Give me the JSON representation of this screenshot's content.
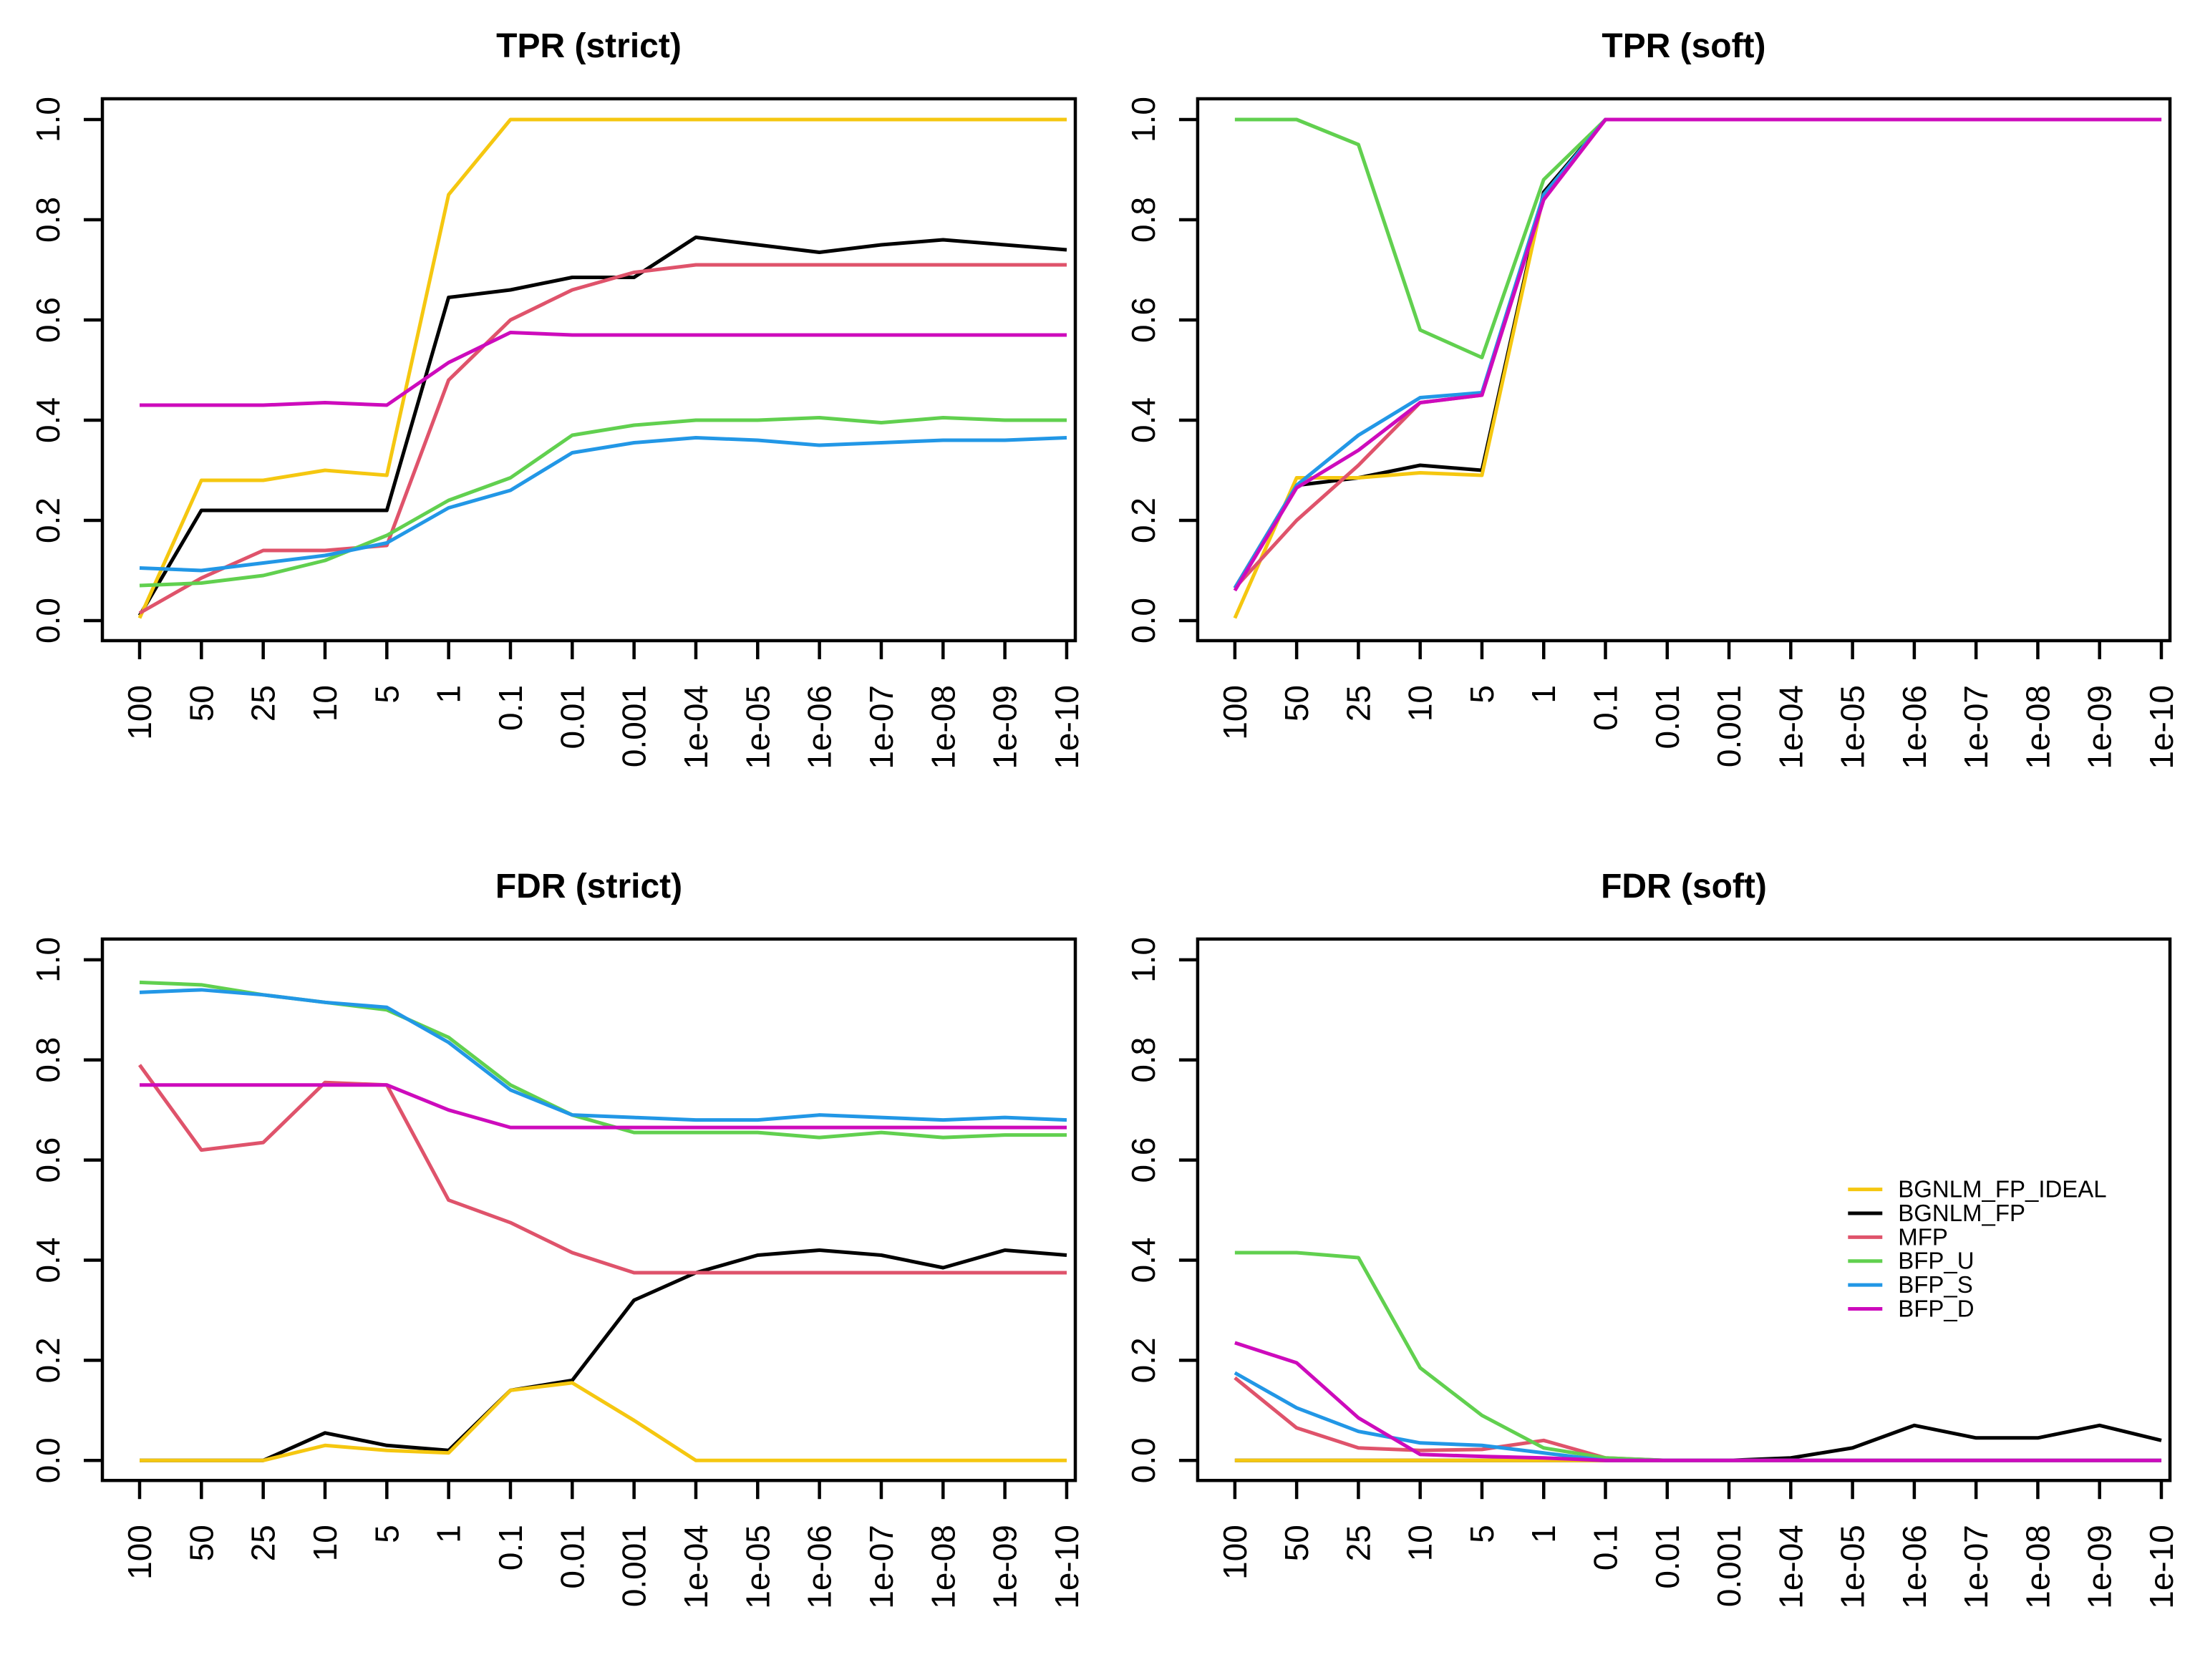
{
  "figure": {
    "background": "#ffffff",
    "axis_color": "#000000",
    "text_color": "#000000"
  },
  "palette": {
    "BGNLM_FP_IDEAL": "#F5C710",
    "BGNLM_FP": "#000000",
    "MFP": "#DF536B",
    "BFP_U": "#61D04F",
    "BFP_S": "#2297E6",
    "BFP_D": "#CD0BBC"
  },
  "legend": {
    "entries": [
      "BGNLM_FP_IDEAL",
      "BGNLM_FP",
      "MFP",
      "BFP_U",
      "BFP_S",
      "BFP_D"
    ]
  },
  "draw_order": [
    "BGNLM_FP",
    "BGNLM_FP_IDEAL",
    "MFP",
    "BFP_U",
    "BFP_S",
    "BFP_D"
  ],
  "chart_data": [
    {
      "type": "line",
      "title": "TPR (strict)",
      "position": "top-left",
      "grid": false,
      "legend": false,
      "xlabel": "",
      "ylabel": "",
      "ylim": [
        0.0,
        1.0
      ],
      "ytick_labels": [
        "0.0",
        "0.2",
        "0.4",
        "0.6",
        "0.8",
        "1.0"
      ],
      "categories": [
        "100",
        "50",
        "25",
        "10",
        "5",
        "1",
        "0.1",
        "0.01",
        "0.001",
        "1e-04",
        "1e-05",
        "1e-06",
        "1e-07",
        "1e-08",
        "1e-09",
        "1e-10"
      ],
      "series": [
        {
          "name": "BGNLM_FP_IDEAL",
          "values": [
            0.005,
            0.28,
            0.28,
            0.3,
            0.29,
            0.85,
            1.0,
            1.0,
            1.0,
            1.0,
            1.0,
            1.0,
            1.0,
            1.0,
            1.0,
            1.0
          ]
        },
        {
          "name": "BGNLM_FP",
          "values": [
            0.01,
            0.22,
            0.22,
            0.22,
            0.22,
            0.645,
            0.66,
            0.685,
            0.685,
            0.765,
            0.75,
            0.735,
            0.75,
            0.76,
            0.75,
            0.74
          ]
        },
        {
          "name": "MFP",
          "values": [
            0.015,
            0.085,
            0.14,
            0.14,
            0.15,
            0.48,
            0.6,
            0.66,
            0.695,
            0.71,
            0.71,
            0.71,
            0.71,
            0.71,
            0.71,
            0.71
          ]
        },
        {
          "name": "BFP_U",
          "values": [
            0.07,
            0.075,
            0.09,
            0.12,
            0.17,
            0.24,
            0.285,
            0.37,
            0.39,
            0.4,
            0.4,
            0.405,
            0.395,
            0.405,
            0.4,
            0.4
          ]
        },
        {
          "name": "BFP_S",
          "values": [
            0.105,
            0.1,
            0.115,
            0.13,
            0.155,
            0.225,
            0.26,
            0.335,
            0.355,
            0.365,
            0.36,
            0.35,
            0.355,
            0.36,
            0.36,
            0.365
          ]
        },
        {
          "name": "BFP_D",
          "values": [
            0.43,
            0.43,
            0.43,
            0.435,
            0.43,
            0.515,
            0.575,
            0.57,
            0.57,
            0.57,
            0.57,
            0.57,
            0.57,
            0.57,
            0.57,
            0.57
          ]
        }
      ]
    },
    {
      "type": "line",
      "title": "TPR (soft)",
      "position": "top-right",
      "grid": false,
      "legend": false,
      "xlabel": "",
      "ylabel": "",
      "ylim": [
        0.0,
        1.0
      ],
      "ytick_labels": [
        "0.0",
        "0.2",
        "0.4",
        "0.6",
        "0.8",
        "1.0"
      ],
      "categories": [
        "100",
        "50",
        "25",
        "10",
        "5",
        "1",
        "0.1",
        "0.01",
        "0.001",
        "1e-04",
        "1e-05",
        "1e-06",
        "1e-07",
        "1e-08",
        "1e-09",
        "1e-10"
      ],
      "series": [
        {
          "name": "BGNLM_FP_IDEAL",
          "values": [
            0.005,
            0.285,
            0.285,
            0.295,
            0.29,
            0.85,
            1.0,
            1.0,
            1.0,
            1.0,
            1.0,
            1.0,
            1.0,
            1.0,
            1.0,
            1.0
          ]
        },
        {
          "name": "BGNLM_FP",
          "values": [
            0.065,
            0.27,
            0.285,
            0.31,
            0.3,
            0.855,
            1.0,
            1.0,
            1.0,
            1.0,
            1.0,
            1.0,
            1.0,
            1.0,
            1.0,
            1.0
          ]
        },
        {
          "name": "MFP",
          "values": [
            0.065,
            0.2,
            0.31,
            0.435,
            0.45,
            0.84,
            1.0,
            1.0,
            1.0,
            1.0,
            1.0,
            1.0,
            1.0,
            1.0,
            1.0,
            1.0
          ]
        },
        {
          "name": "BFP_U",
          "values": [
            1.0,
            1.0,
            0.95,
            0.58,
            0.525,
            0.88,
            1.0,
            1.0,
            1.0,
            1.0,
            1.0,
            1.0,
            1.0,
            1.0,
            1.0,
            1.0
          ]
        },
        {
          "name": "BFP_S",
          "values": [
            0.065,
            0.27,
            0.37,
            0.445,
            0.455,
            0.85,
            1.0,
            1.0,
            1.0,
            1.0,
            1.0,
            1.0,
            1.0,
            1.0,
            1.0,
            1.0
          ]
        },
        {
          "name": "BFP_D",
          "values": [
            0.06,
            0.265,
            0.34,
            0.435,
            0.45,
            0.84,
            1.0,
            1.0,
            1.0,
            1.0,
            1.0,
            1.0,
            1.0,
            1.0,
            1.0,
            1.0
          ]
        }
      ]
    },
    {
      "type": "line",
      "title": "FDR (strict)",
      "position": "bottom-left",
      "grid": false,
      "legend": false,
      "xlabel": "",
      "ylabel": "",
      "ylim": [
        0.0,
        1.0
      ],
      "ytick_labels": [
        "0.0",
        "0.2",
        "0.4",
        "0.6",
        "0.8",
        "1.0"
      ],
      "categories": [
        "100",
        "50",
        "25",
        "10",
        "5",
        "1",
        "0.1",
        "0.01",
        "0.001",
        "1e-04",
        "1e-05",
        "1e-06",
        "1e-07",
        "1e-08",
        "1e-09",
        "1e-10"
      ],
      "series": [
        {
          "name": "BGNLM_FP_IDEAL",
          "values": [
            0.0,
            0.0,
            0.0,
            0.03,
            0.02,
            0.015,
            0.14,
            0.155,
            0.08,
            0.0,
            0.0,
            0.0,
            0.0,
            0.0,
            0.0,
            0.0
          ]
        },
        {
          "name": "BGNLM_FP",
          "values": [
            0.0,
            0.0,
            0.0,
            0.055,
            0.03,
            0.02,
            0.14,
            0.16,
            0.32,
            0.375,
            0.41,
            0.42,
            0.41,
            0.385,
            0.42,
            0.41
          ]
        },
        {
          "name": "MFP",
          "values": [
            0.79,
            0.62,
            0.635,
            0.755,
            0.75,
            0.52,
            0.475,
            0.415,
            0.375,
            0.375,
            0.375,
            0.375,
            0.375,
            0.375,
            0.375,
            0.375
          ]
        },
        {
          "name": "BFP_U",
          "values": [
            0.955,
            0.95,
            0.93,
            0.915,
            0.9,
            0.845,
            0.75,
            0.69,
            0.655,
            0.655,
            0.655,
            0.645,
            0.655,
            0.645,
            0.65,
            0.65
          ]
        },
        {
          "name": "BFP_S",
          "values": [
            0.935,
            0.94,
            0.93,
            0.915,
            0.905,
            0.835,
            0.74,
            0.69,
            0.685,
            0.68,
            0.68,
            0.69,
            0.685,
            0.68,
            0.685,
            0.68
          ]
        },
        {
          "name": "BFP_D",
          "values": [
            0.75,
            0.75,
            0.75,
            0.75,
            0.75,
            0.7,
            0.665,
            0.665,
            0.665,
            0.665,
            0.665,
            0.665,
            0.665,
            0.665,
            0.665,
            0.665
          ]
        }
      ]
    },
    {
      "type": "line",
      "title": "FDR (soft)",
      "position": "bottom-right",
      "grid": false,
      "legend": true,
      "xlabel": "",
      "ylabel": "",
      "ylim": [
        0.0,
        1.0
      ],
      "ytick_labels": [
        "0.0",
        "0.2",
        "0.4",
        "0.6",
        "0.8",
        "1.0"
      ],
      "categories": [
        "100",
        "50",
        "25",
        "10",
        "5",
        "1",
        "0.1",
        "0.01",
        "0.001",
        "1e-04",
        "1e-05",
        "1e-06",
        "1e-07",
        "1e-08",
        "1e-09",
        "1e-10"
      ],
      "series": [
        {
          "name": "BGNLM_FP_IDEAL",
          "values": [
            0.0,
            0.0,
            0.0,
            0.0,
            0.0,
            0.0,
            0.0,
            0.0,
            0.0,
            0.0,
            0.0,
            0.0,
            0.0,
            0.0,
            0.0,
            0.0
          ]
        },
        {
          "name": "BGNLM_FP",
          "values": [
            0.0,
            0.0,
            0.0,
            0.0,
            0.0,
            0.0,
            0.0,
            0.0,
            0.0,
            0.005,
            0.025,
            0.07,
            0.045,
            0.045,
            0.07,
            0.04
          ]
        },
        {
          "name": "MFP",
          "values": [
            0.165,
            0.065,
            0.025,
            0.02,
            0.022,
            0.04,
            0.005,
            0.0,
            0.0,
            0.0,
            0.0,
            0.0,
            0.0,
            0.0,
            0.0,
            0.0
          ]
        },
        {
          "name": "BFP_U",
          "values": [
            0.415,
            0.415,
            0.405,
            0.185,
            0.09,
            0.025,
            0.005,
            0.0,
            0.0,
            0.0,
            0.0,
            0.0,
            0.0,
            0.0,
            0.0,
            0.0
          ]
        },
        {
          "name": "BFP_S",
          "values": [
            0.175,
            0.105,
            0.058,
            0.035,
            0.03,
            0.015,
            0.0,
            0.0,
            0.0,
            0.0,
            0.0,
            0.0,
            0.0,
            0.0,
            0.0,
            0.0
          ]
        },
        {
          "name": "BFP_D",
          "values": [
            0.235,
            0.195,
            0.085,
            0.012,
            0.008,
            0.005,
            0.0,
            0.0,
            0.0,
            0.0,
            0.0,
            0.0,
            0.0,
            0.0,
            0.0,
            0.0
          ]
        }
      ]
    }
  ]
}
